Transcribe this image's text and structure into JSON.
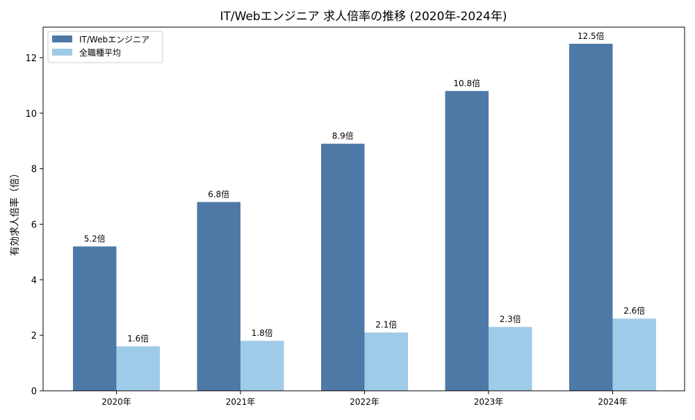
{
  "chart_data": {
    "type": "bar",
    "title": "IT/Webエンジニア 求人倍率の推移 (2020年-2024年)",
    "xlabel": "",
    "ylabel": "有効求人倍率（倍）",
    "categories": [
      "2020年",
      "2021年",
      "2022年",
      "2023年",
      "2024年"
    ],
    "series": [
      {
        "name": "IT/Webエンジニア",
        "color": "#4e79a7",
        "values": [
          5.2,
          6.8,
          8.9,
          10.8,
          12.5
        ],
        "labels": [
          "5.2倍",
          "6.8倍",
          "8.9倍",
          "10.8倍",
          "12.5倍"
        ]
      },
      {
        "name": "全職種平均",
        "color": "#a0cbe8",
        "values": [
          1.6,
          1.8,
          2.1,
          2.3,
          2.6
        ],
        "labels": [
          "1.6倍",
          "1.8倍",
          "2.1倍",
          "2.3倍",
          "2.6倍"
        ]
      }
    ],
    "ylim": [
      0,
      13.1
    ],
    "yticks": [
      0,
      2,
      4,
      6,
      8,
      10,
      12
    ],
    "grid": false,
    "legend_position": "top-left"
  }
}
